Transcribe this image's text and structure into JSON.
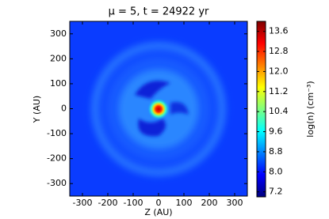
{
  "chart_data": {
    "type": "heatmap",
    "title": "μ = 5, t = 24922 yr",
    "xlabel": "Z (AU)",
    "ylabel": "Y (AU)",
    "colorbar_label": "log(n) (cm⁻³)",
    "colormap": "jet",
    "xlim": [
      -350,
      350
    ],
    "xticks": [
      -300,
      -200,
      -100,
      0,
      100,
      200,
      300
    ],
    "ylim": [
      -350,
      350
    ],
    "yticks": [
      -300,
      -200,
      -100,
      0,
      100,
      200,
      300
    ],
    "clim": [
      7,
      14
    ],
    "cticks": [
      7.2,
      {
        "value": 8,
        "label": "8.0"
      },
      8.8,
      9.6,
      10.4,
      11.2,
      {
        "value": 12,
        "label": "12.0"
      },
      12.8,
      13.6
    ]
  }
}
